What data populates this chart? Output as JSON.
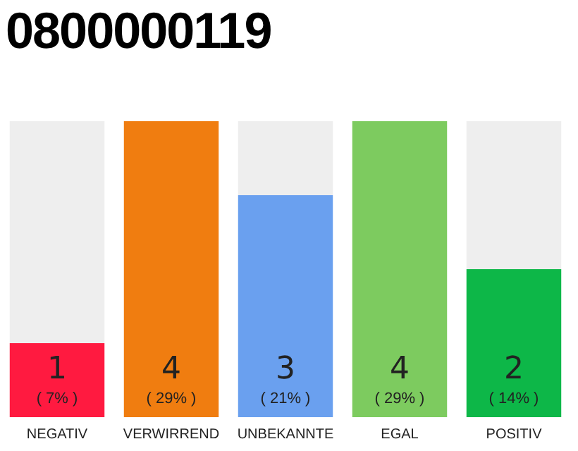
{
  "chart_data": {
    "type": "bar",
    "title": "0800000119",
    "categories": [
      "NEGATIV",
      "VERWIRREND",
      "UNBEKANNTE",
      "EGAL",
      "POSITIV"
    ],
    "stacked": true,
    "tick_labels": "x",
    "grid": false,
    "legend": false,
    "series": [
      {
        "colors": [
          "#ff1a40",
          "#f07d10",
          "#6aa0ef",
          "#7dcb5f",
          "#0db748"
        ],
        "values": [
          1,
          4,
          3,
          4,
          2
        ],
        "value_labels": [
          "1",
          "4",
          "3",
          "4",
          "2"
        ]
      },
      {
        "color": "#eeeeee",
        "values": [
          3,
          0,
          1,
          0,
          2
        ]
      }
    ],
    "annotations": [
      "( 7% )",
      "( 29% )",
      "( 21% )",
      "( 29% )",
      "( 14% )"
    ]
  }
}
